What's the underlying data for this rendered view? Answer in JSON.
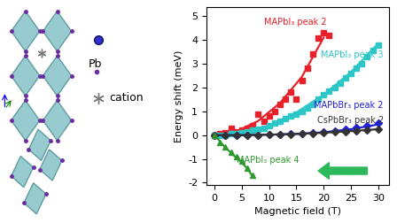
{
  "chart_data": {
    "type": "scatter",
    "x_label": "Magnetic field (T)",
    "y_label": "Energy shift (meV)",
    "xlim": [
      -1.5,
      32
    ],
    "xticks": [
      0,
      5,
      10,
      15,
      20,
      25,
      30
    ],
    "ylim": [
      -2.1,
      5.4
    ],
    "yticks": [
      -2,
      -1,
      0,
      1,
      2,
      3,
      4,
      5
    ],
    "series": [
      {
        "name": "MAPbI₃ peak 2",
        "color": "#e8202a",
        "marker": "square",
        "x": [
          0,
          1,
          2,
          3,
          4,
          5,
          6,
          7,
          8,
          9,
          10,
          11,
          12,
          13,
          14,
          15,
          16,
          17,
          18,
          19,
          20,
          21
        ],
        "values": [
          0,
          0.05,
          0.1,
          0.3,
          0.15,
          0.2,
          0.3,
          0.4,
          0.9,
          0.6,
          0.8,
          1.0,
          1.3,
          1.5,
          1.8,
          1.5,
          2.3,
          2.8,
          3.4,
          4.1,
          4.3,
          4.2
        ]
      },
      {
        "type": "line",
        "color": "#e8202a",
        "x": [
          0,
          4,
          8,
          12,
          16,
          20
        ],
        "values": [
          0,
          0.15,
          0.6,
          1.35,
          2.45,
          4.1
        ]
      },
      {
        "name": "MAPbI₃ peak 3",
        "color": "#2cc6c6",
        "marker": "square",
        "x": [
          0,
          1,
          2,
          3,
          4,
          5,
          6,
          7,
          8,
          9,
          10,
          11,
          12,
          13,
          14,
          15,
          16,
          17,
          18,
          19,
          20,
          21,
          22,
          23,
          24,
          25,
          26,
          27,
          28,
          29,
          30
        ],
        "values": [
          0,
          0,
          0,
          0.05,
          0.05,
          0.1,
          0.15,
          0.2,
          0.25,
          0.3,
          0.4,
          0.5,
          0.6,
          0.7,
          0.8,
          0.9,
          1.0,
          1.15,
          1.3,
          1.5,
          1.7,
          1.85,
          2.0,
          2.2,
          2.4,
          2.6,
          2.8,
          3.0,
          3.3,
          3.55,
          3.8
        ]
      },
      {
        "type": "line",
        "color": "#2cc6c6",
        "x": [
          0,
          5,
          10,
          15,
          20,
          25,
          30
        ],
        "values": [
          0,
          0.1,
          0.4,
          0.95,
          1.7,
          2.65,
          3.85
        ]
      },
      {
        "name": "MAPbBr₃ peak 2",
        "color": "#1f1fd6",
        "marker": "diamond",
        "x": [
          0,
          2,
          4,
          6,
          8,
          10,
          12,
          14,
          16,
          18,
          20,
          22,
          24,
          26,
          28,
          30
        ],
        "values": [
          0,
          0,
          0,
          0,
          0,
          0.02,
          0.03,
          0.05,
          0.07,
          0.1,
          0.13,
          0.18,
          0.25,
          0.32,
          0.4,
          0.5
        ]
      },
      {
        "type": "line",
        "color": "#1f1fd6",
        "x": [
          0,
          5,
          10,
          15,
          20,
          25,
          30
        ],
        "values": [
          0,
          0,
          0.02,
          0.05,
          0.12,
          0.25,
          0.45
        ]
      },
      {
        "name": "CsPbBr₃ peak 2",
        "color": "#333333",
        "marker": "diamond",
        "x": [
          0,
          2,
          4,
          6,
          8,
          10,
          12,
          14,
          16,
          18,
          20,
          22,
          24,
          26,
          28,
          30
        ],
        "values": [
          0,
          0,
          0,
          0,
          0,
          0.01,
          0.02,
          0.03,
          0.05,
          0.07,
          0.09,
          0.12,
          0.15,
          0.18,
          0.22,
          0.25
        ]
      },
      {
        "type": "line",
        "color": "#333333",
        "x": [
          0,
          5,
          10,
          15,
          20,
          25,
          30
        ],
        "values": [
          0,
          0,
          0.02,
          0.05,
          0.1,
          0.17,
          0.25
        ]
      },
      {
        "name": "MAPbI₃ peak 4",
        "color": "#2e9a2e",
        "marker": "triangle",
        "x": [
          0,
          1,
          2,
          3,
          4,
          5,
          6,
          7
        ],
        "values": [
          0,
          -0.3,
          -0.5,
          -0.7,
          -0.9,
          -1.1,
          -1.4,
          -1.7
        ]
      },
      {
        "type": "line",
        "color": "#2e9a2e",
        "x": [
          0,
          1.5,
          3,
          4.5,
          6,
          7
        ],
        "values": [
          0,
          -0.4,
          -0.75,
          -1.05,
          -1.4,
          -1.75
        ]
      }
    ]
  },
  "diagram": {
    "labels": [
      "Pb",
      "cation"
    ]
  }
}
